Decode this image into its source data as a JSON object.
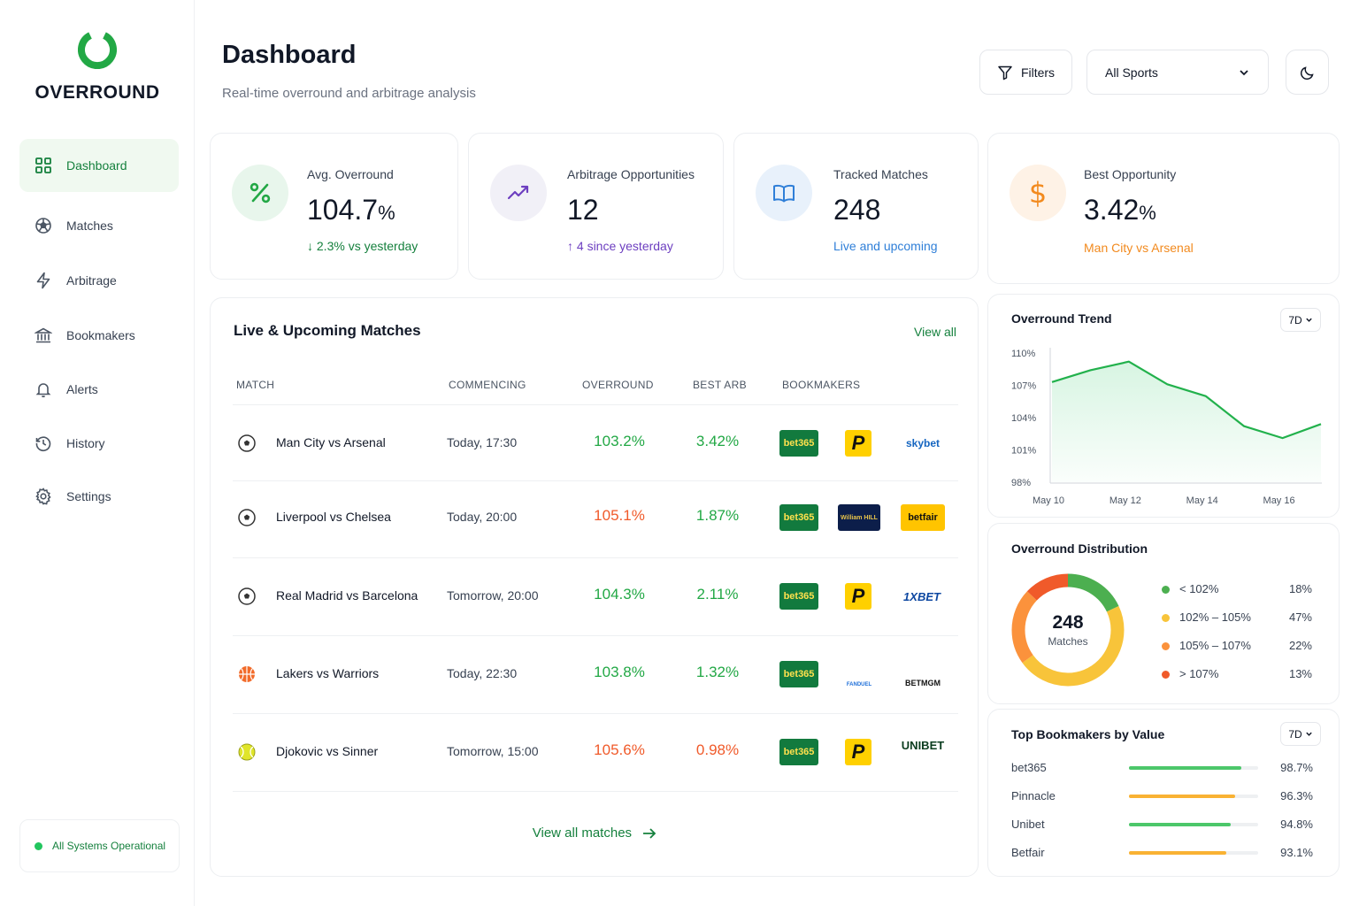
{
  "brand": {
    "name": "OVERROUND"
  },
  "nav": {
    "items": [
      {
        "label": "Dashboard",
        "icon": "grid-icon"
      },
      {
        "label": "Matches",
        "icon": "soccer-ball-icon"
      },
      {
        "label": "Arbitrage",
        "icon": "lightning-icon"
      },
      {
        "label": "Bookmakers",
        "icon": "bank-icon"
      },
      {
        "label": "Alerts",
        "icon": "bell-icon"
      },
      {
        "label": "History",
        "icon": "history-icon"
      },
      {
        "label": "Settings",
        "icon": "gear-icon"
      }
    ],
    "active": "Dashboard"
  },
  "status": {
    "label": "All Systems Operational",
    "color": "#22c55e"
  },
  "header": {
    "title": "Dashboard",
    "subtitle": "Real-time overround and arbitrage analysis",
    "filters_label": "Filters",
    "sports_select": "All Sports"
  },
  "stats": {
    "avg_overround": {
      "label": "Avg. Overround",
      "value": "104.7",
      "unit": "%",
      "note": "↓ 2.3% vs yesterday"
    },
    "arbitrage": {
      "label": "Arbitrage Opportunities",
      "value": "12",
      "note": "↑ 4 since yesterday"
    },
    "tracked": {
      "label": "Tracked Matches",
      "value": "248",
      "note": "Live and upcoming"
    },
    "best": {
      "label": "Best Opportunity",
      "value": "3.42",
      "unit": "%",
      "note": "Man City vs Arsenal"
    }
  },
  "matches": {
    "title": "Live & Upcoming Matches",
    "view_all": "View all",
    "columns": [
      "MATCH",
      "COMMENCING",
      "OVERROUND",
      "BEST ARB",
      "BOOKMAKERS"
    ],
    "rows": [
      {
        "sport": "soccer",
        "match": "Man City vs Arsenal",
        "time": "Today, 17:30",
        "overround": "103.2%",
        "arb": "3.42%",
        "over_status": "good",
        "arb_status": "good",
        "bookmakers": [
          "bet365",
          "P",
          "skybet"
        ]
      },
      {
        "sport": "soccer",
        "match": "Liverpool vs Chelsea",
        "time": "Today, 20:00",
        "overround": "105.1%",
        "arb": "1.87%",
        "over_status": "bad",
        "arb_status": "good",
        "bookmakers": [
          "bet365",
          "William HILL",
          "betfair"
        ]
      },
      {
        "sport": "soccer",
        "match": "Real Madrid vs Barcelona",
        "time": "Tomorrow, 20:00",
        "overround": "104.3%",
        "arb": "2.11%",
        "over_status": "good",
        "arb_status": "good",
        "bookmakers": [
          "bet365",
          "P",
          "1XBET"
        ]
      },
      {
        "sport": "basketball",
        "match": "Lakers vs Warriors",
        "time": "Today, 22:30",
        "overround": "103.8%",
        "arb": "1.32%",
        "over_status": "good",
        "arb_status": "good",
        "bookmakers": [
          "bet365",
          "FANDUEL",
          "BETMGM"
        ]
      },
      {
        "sport": "tennis",
        "match": "Djokovic vs Sinner",
        "time": "Tomorrow, 15:00",
        "overround": "105.6%",
        "arb": "0.98%",
        "over_status": "bad",
        "arb_status": "bad",
        "bookmakers": [
          "bet365",
          "P",
          "UNIBET"
        ]
      }
    ],
    "view_all_matches": "View all matches"
  },
  "trend": {
    "title": "Overround Trend",
    "period": "7D",
    "y_ticks": [
      "110%",
      "107%",
      "104%",
      "101%",
      "98%"
    ],
    "x_ticks": [
      "May 10",
      "May 12",
      "May 14",
      "May 16"
    ]
  },
  "distribution": {
    "title": "Overround Distribution",
    "total": "248",
    "total_label": "Matches",
    "segments": [
      {
        "label": "< 102%",
        "pct": "18%",
        "color": "#4caf50"
      },
      {
        "label": "102% – 105%",
        "pct": "47%",
        "color": "#f8c43a"
      },
      {
        "label": "105% – 107%",
        "pct": "22%",
        "color": "#fb923c"
      },
      {
        "label": "> 107%",
        "pct": "13%",
        "color": "#f05a2a"
      }
    ]
  },
  "top_bookmakers": {
    "title": "Top Bookmakers by Value",
    "period": "7D",
    "rows": [
      {
        "name": "bet365",
        "value": "98.7%",
        "level": 0.87,
        "color": "#4cc76a"
      },
      {
        "name": "Pinnacle",
        "value": "96.3%",
        "level": 0.82,
        "color": "#f9b233"
      },
      {
        "name": "Unibet",
        "value": "94.8%",
        "level": 0.79,
        "color": "#4cc76a"
      },
      {
        "name": "Betfair",
        "value": "93.1%",
        "level": 0.75,
        "color": "#f9b233"
      }
    ]
  },
  "chart_data": {
    "type": "area",
    "title": "Overround Trend",
    "x": [
      "May 10",
      "May 11",
      "May 12",
      "May 13",
      "May 14",
      "May 15",
      "May 16",
      "May 17"
    ],
    "values": [
      107.3,
      108.4,
      109.2,
      107.1,
      106.0,
      103.2,
      102.1,
      103.4
    ],
    "xlabel": "",
    "ylabel": "",
    "ylim": [
      98,
      110
    ],
    "grid": false,
    "series": [
      {
        "values": [
          107.3,
          108.4,
          109.2,
          107.1,
          106.0,
          103.2,
          102.1,
          103.4
        ]
      }
    ]
  }
}
